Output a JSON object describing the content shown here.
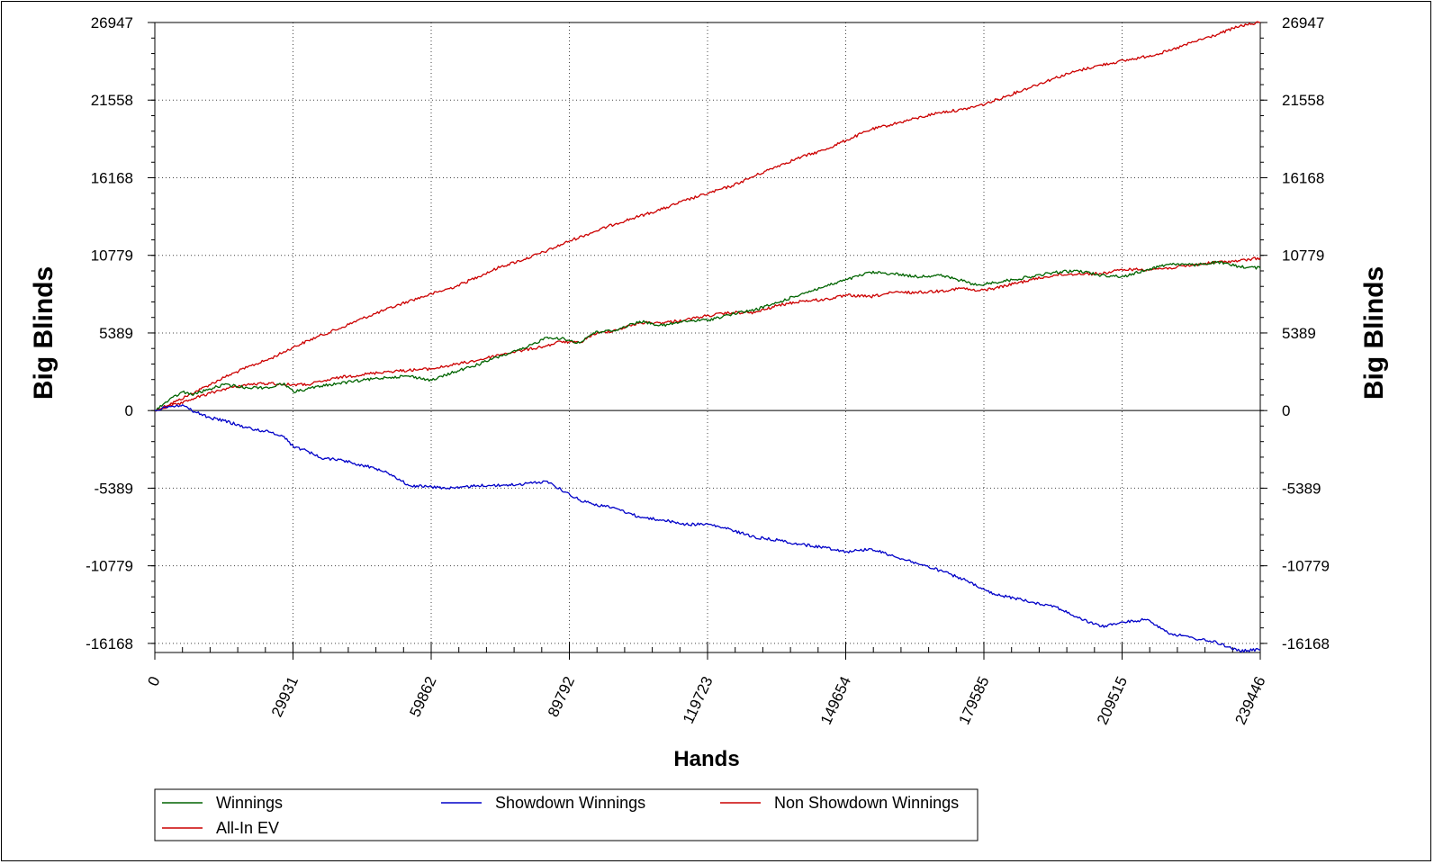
{
  "chart_data": {
    "type": "line",
    "xlabel": "Hands",
    "ylabel": "Big Blinds",
    "ylabel_right": "Big Blinds",
    "xlim": [
      0,
      239446
    ],
    "ylim": [
      -16800,
      26947
    ],
    "x_ticks": [
      "0",
      "29931",
      "59862",
      "89792",
      "119723",
      "149654",
      "179585",
      "209515",
      "239446"
    ],
    "y_ticks": [
      "26947",
      "21558",
      "16168",
      "10779",
      "5389",
      "0",
      "-5389",
      "-10779",
      "-16168"
    ],
    "grid": true,
    "legend_placement": "bottom",
    "series": [
      {
        "name": "Winnings",
        "color": "#006400",
        "x": [
          0,
          3000,
          6000,
          8000,
          12000,
          15000,
          20000,
          25000,
          28000,
          30000,
          33000,
          36000,
          40000,
          45000,
          50000,
          55000,
          60000,
          65000,
          70000,
          75000,
          80000,
          85000,
          88000,
          92000,
          95000,
          100000,
          105000,
          110000,
          115000,
          120000,
          125000,
          130000,
          135000,
          140000,
          145000,
          150000,
          155000,
          160000,
          165000,
          170000,
          175000,
          178000,
          182000,
          186000,
          190000,
          195000,
          200000,
          205000,
          210000,
          215000,
          220000,
          225000,
          230000,
          235000,
          239446
        ],
        "y": [
          0,
          700,
          1300,
          1100,
          1500,
          1800,
          1600,
          1600,
          1900,
          1300,
          1500,
          1700,
          1900,
          2100,
          2300,
          2400,
          2100,
          2700,
          3200,
          3800,
          4300,
          5100,
          5000,
          4700,
          5400,
          5600,
          6200,
          5900,
          6200,
          6300,
          6700,
          7000,
          7500,
          8100,
          8600,
          9100,
          9600,
          9500,
          9300,
          9400,
          9000,
          8700,
          8900,
          9100,
          9300,
          9600,
          9700,
          9400,
          9300,
          9800,
          10200,
          10100,
          10300,
          10000,
          9900
        ]
      },
      {
        "name": "Showdown Winnings",
        "color": "#0000c8",
        "x": [
          0,
          3000,
          6000,
          8000,
          12000,
          15000,
          20000,
          25000,
          28000,
          30000,
          33000,
          36000,
          40000,
          45000,
          50000,
          55000,
          60000,
          65000,
          70000,
          75000,
          80000,
          85000,
          88000,
          92000,
          95000,
          100000,
          105000,
          110000,
          115000,
          120000,
          125000,
          130000,
          135000,
          140000,
          145000,
          150000,
          155000,
          160000,
          165000,
          170000,
          175000,
          178000,
          182000,
          186000,
          190000,
          195000,
          200000,
          205000,
          210000,
          215000,
          220000,
          225000,
          230000,
          235000,
          239446
        ],
        "y": [
          0,
          300,
          400,
          0,
          -500,
          -700,
          -1200,
          -1500,
          -1800,
          -2500,
          -2800,
          -3300,
          -3400,
          -3800,
          -4200,
          -5200,
          -5300,
          -5400,
          -5200,
          -5200,
          -5100,
          -4900,
          -5500,
          -6200,
          -6500,
          -6800,
          -7400,
          -7600,
          -7900,
          -7900,
          -8300,
          -8800,
          -9000,
          -9300,
          -9500,
          -9800,
          -9600,
          -10100,
          -10600,
          -11100,
          -11700,
          -12200,
          -12800,
          -13000,
          -13300,
          -13600,
          -14400,
          -15000,
          -14700,
          -14500,
          -15500,
          -15800,
          -16100,
          -16700,
          -16600
        ]
      },
      {
        "name": "Non Showdown Winnings",
        "color": "#cc0000",
        "x": [
          0,
          3000,
          6000,
          8000,
          12000,
          15000,
          20000,
          25000,
          28000,
          30000,
          33000,
          36000,
          40000,
          45000,
          50000,
          55000,
          60000,
          65000,
          70000,
          75000,
          80000,
          85000,
          88000,
          92000,
          95000,
          100000,
          105000,
          110000,
          115000,
          120000,
          125000,
          130000,
          135000,
          140000,
          145000,
          150000,
          155000,
          160000,
          165000,
          170000,
          175000,
          178000,
          182000,
          186000,
          190000,
          195000,
          200000,
          205000,
          210000,
          215000,
          220000,
          225000,
          230000,
          235000,
          239446
        ],
        "y": [
          0,
          300,
          500,
          800,
          1200,
          1500,
          1800,
          1900,
          1800,
          1800,
          1800,
          2000,
          2300,
          2500,
          2700,
          2800,
          2900,
          3200,
          3500,
          3900,
          4200,
          4500,
          4800,
          4700,
          5300,
          5600,
          6100,
          6100,
          6300,
          6600,
          6800,
          6800,
          7300,
          7600,
          7700,
          8000,
          7900,
          8200,
          8200,
          8300,
          8500,
          8300,
          8500,
          8800,
          9100,
          9400,
          9500,
          9500,
          9800,
          9800,
          9900,
          10100,
          10300,
          10400,
          10600
        ]
      },
      {
        "name": "All-In EV",
        "color": "#cc0000",
        "x": [
          0,
          5000,
          10000,
          15000,
          20000,
          25000,
          30000,
          35000,
          40000,
          45000,
          50000,
          55000,
          60000,
          65000,
          70000,
          75000,
          80000,
          85000,
          90000,
          95000,
          100000,
          105000,
          110000,
          115000,
          120000,
          125000,
          130000,
          135000,
          140000,
          145000,
          150000,
          155000,
          160000,
          165000,
          170000,
          175000,
          180000,
          185000,
          190000,
          195000,
          200000,
          205000,
          210000,
          215000,
          220000,
          225000,
          230000,
          235000,
          239446
        ],
        "y": [
          0,
          700,
          1500,
          2300,
          3000,
          3600,
          4400,
          5100,
          5700,
          6400,
          7000,
          7600,
          8100,
          8600,
          9300,
          10000,
          10500,
          11100,
          11800,
          12400,
          13000,
          13500,
          14000,
          14600,
          15100,
          15600,
          16300,
          17000,
          17600,
          18100,
          18800,
          19500,
          19900,
          20300,
          20700,
          20900,
          21300,
          21900,
          22500,
          23100,
          23600,
          24000,
          24300,
          24600,
          25000,
          25600,
          26100,
          26700,
          26947
        ]
      }
    ]
  }
}
